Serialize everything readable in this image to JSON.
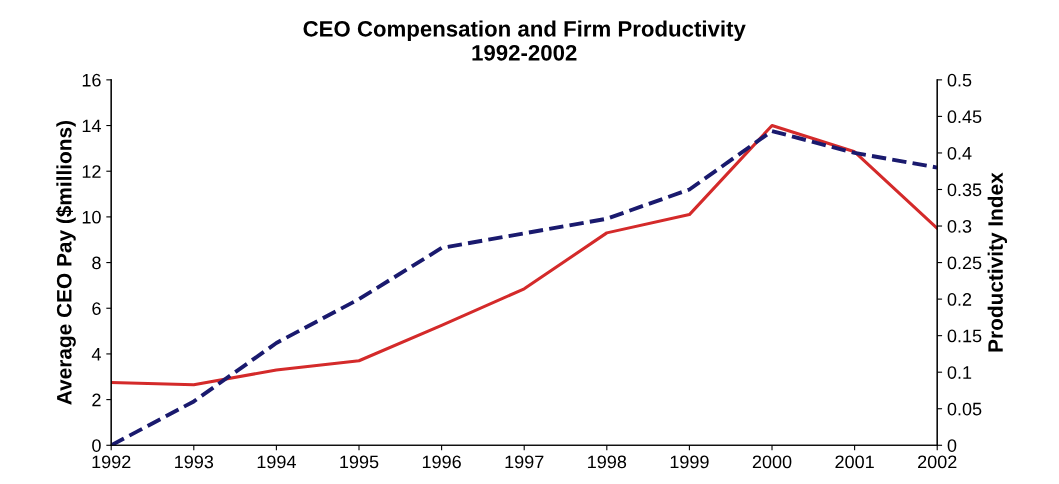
{
  "chart_data": {
    "type": "line",
    "title": "CEO Compensation and Firm Productivity\n1992-2002",
    "ylabel": "Average CEO Pay ($millions)",
    "y2label": "Productivity Index",
    "x": [
      1992,
      1993,
      1994,
      1995,
      1996,
      1997,
      1998,
      1999,
      2000,
      2001,
      2002
    ],
    "series": [
      {
        "color": "#d42a2a",
        "line_style": "solid",
        "values": [
          2.75,
          2.65,
          3.3,
          3.7,
          5.25,
          6.85,
          9.3,
          10.1,
          14.0,
          12.85,
          9.5
        ]
      },
      {
        "color": "#1a1a6e",
        "line_style": "dashed",
        "axis": "y2",
        "values": [
          0.0,
          0.06,
          0.14,
          0.2,
          0.27,
          0.29,
          0.31,
          0.35,
          0.43,
          0.4,
          0.38
        ]
      }
    ],
    "xlim": [
      1992,
      2002
    ],
    "xticks": [
      1992,
      1993,
      1994,
      1995,
      1996,
      1997,
      1998,
      1999,
      2000,
      2001,
      2002
    ],
    "ylim": [
      0,
      16
    ],
    "yticks": [
      0,
      2,
      4,
      6,
      8,
      10,
      12,
      14,
      16
    ],
    "y2lim": [
      0,
      0.5
    ],
    "y2ticks": [
      0,
      0.05,
      0.1,
      0.15,
      0.2,
      0.25,
      0.3,
      0.35,
      0.4,
      0.45,
      0.5
    ],
    "grid": false,
    "legend": false,
    "marker": "none"
  }
}
